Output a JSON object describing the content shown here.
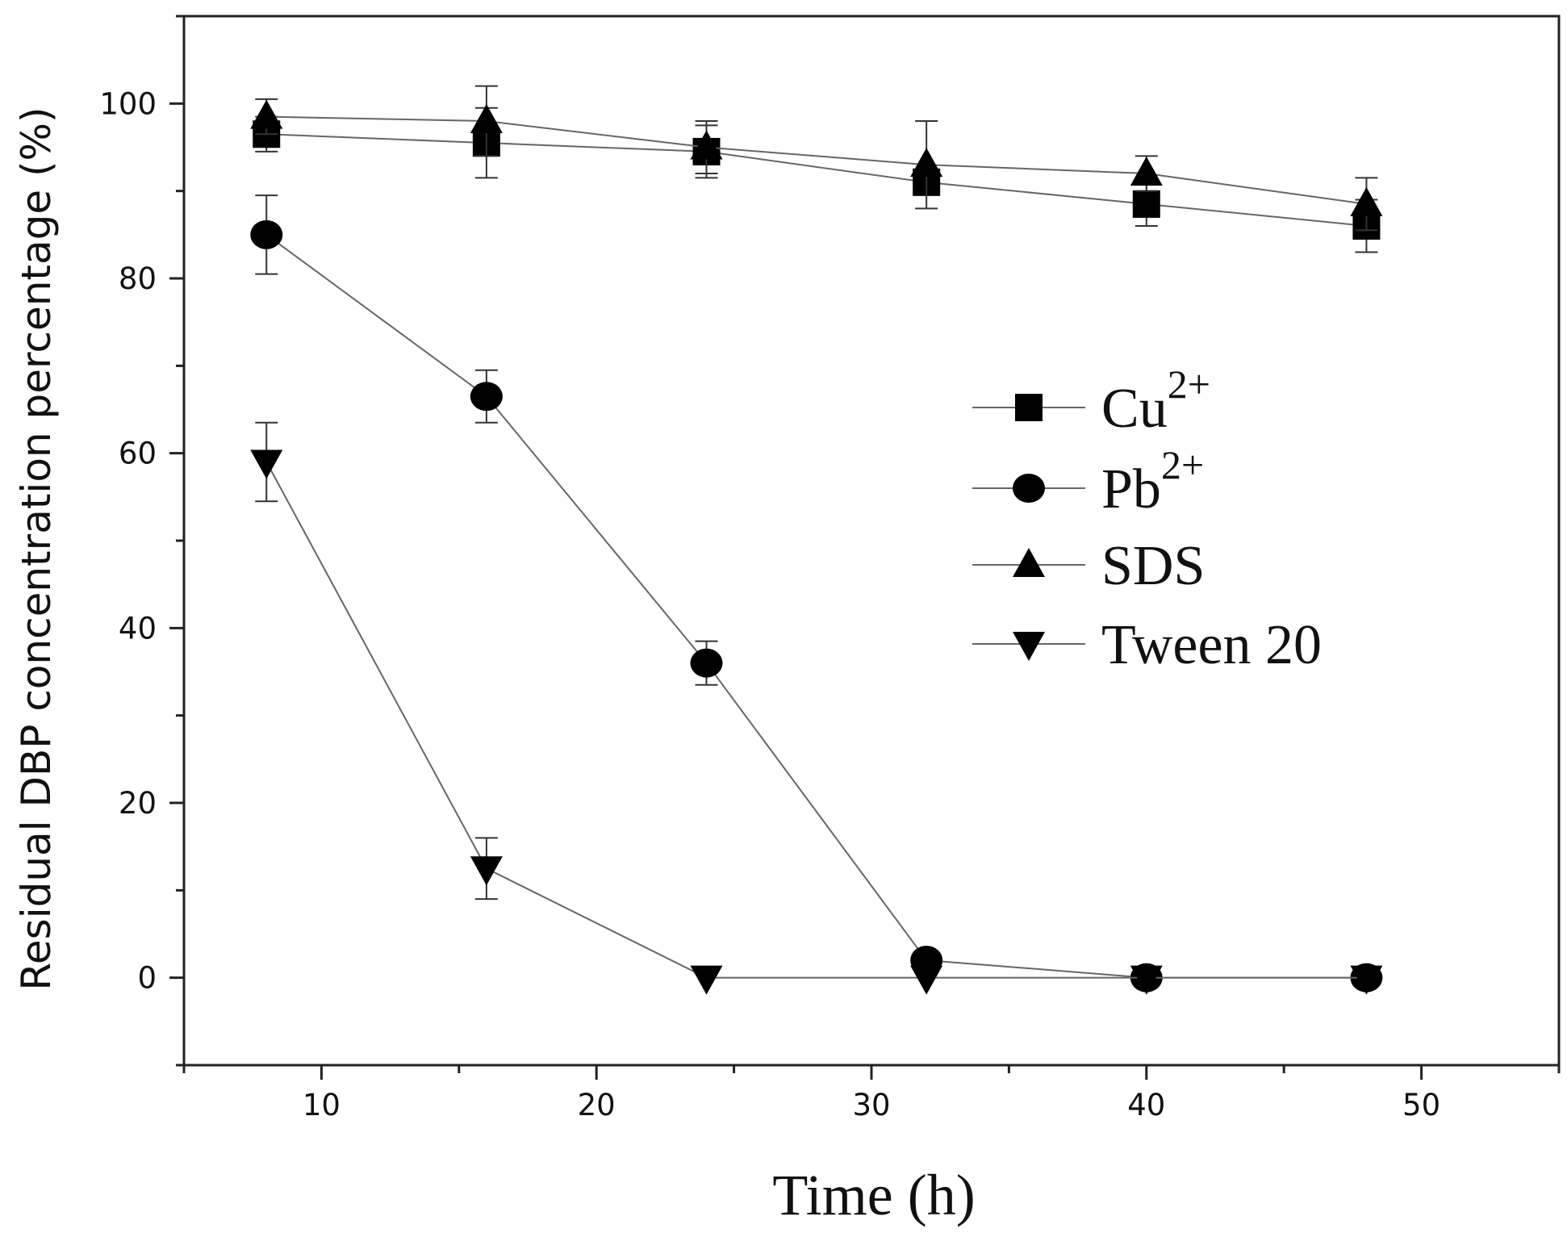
{
  "chart_data": {
    "type": "line",
    "title": "",
    "xlabel": "Time (h)",
    "ylabel": "Residual DBP concentration percentage (%)",
    "xlim": [
      5,
      55
    ],
    "ylim": [
      -10,
      110
    ],
    "xticks": [
      10,
      20,
      30,
      40,
      50
    ],
    "yticks": [
      0,
      20,
      40,
      60,
      80,
      100
    ],
    "xtick_labels": [
      "10",
      "20",
      "30",
      "40",
      "50"
    ],
    "ytick_labels": [
      "0",
      "20",
      "40",
      "60",
      "80",
      "100"
    ],
    "grid": false,
    "legend_position": "center-right",
    "series": [
      {
        "name": "Cu",
        "sup": "2+",
        "marker": "square",
        "x": [
          8,
          16,
          24,
          32,
          40,
          48
        ],
        "y": [
          96.5,
          95.5,
          94.5,
          91,
          88.5,
          86
        ],
        "err": [
          2,
          4,
          3,
          1,
          2.5,
          3
        ]
      },
      {
        "name": "Pb",
        "sup": "2+",
        "marker": "circle",
        "x": [
          8,
          16,
          24,
          32,
          40,
          48
        ],
        "y": [
          85,
          66.5,
          36,
          2,
          0,
          0
        ],
        "err": [
          4.5,
          3,
          2.5,
          1,
          0,
          0
        ]
      },
      {
        "name": "SDS",
        "sup": "",
        "marker": "triangle-up",
        "x": [
          8,
          16,
          24,
          32,
          40,
          48
        ],
        "y": [
          98.5,
          98,
          95,
          93,
          92,
          88.5
        ],
        "err": [
          2,
          4,
          3,
          5,
          2,
          3
        ]
      },
      {
        "name": "Tween 20",
        "sup": "",
        "marker": "triangle-down",
        "x": [
          8,
          16,
          24,
          32,
          40,
          48
        ],
        "y": [
          59,
          12.5,
          0,
          0,
          0,
          0
        ],
        "err": [
          4.5,
          3.5,
          0,
          0,
          0,
          0
        ]
      }
    ]
  }
}
